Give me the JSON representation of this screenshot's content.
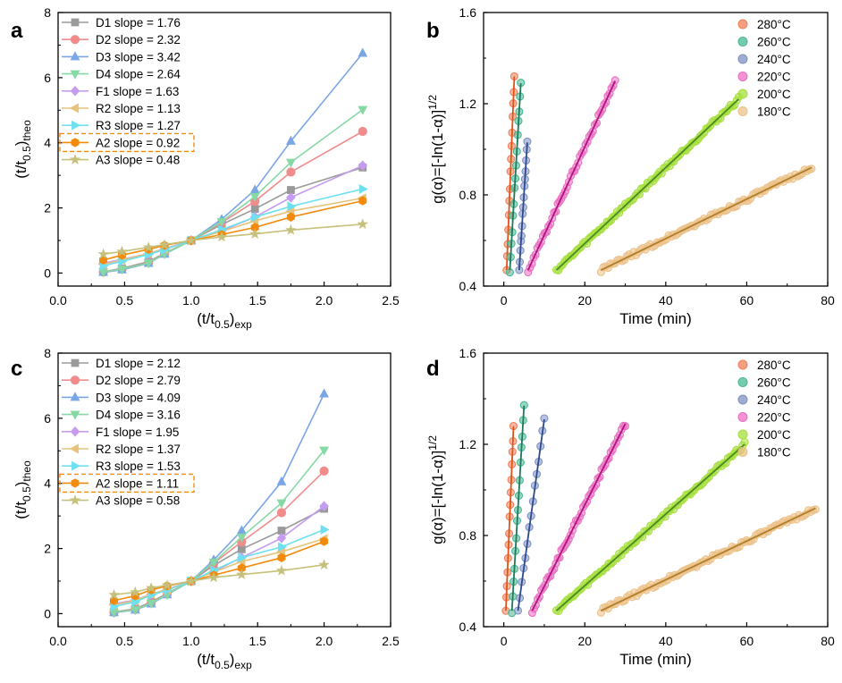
{
  "chart_data": [
    {
      "panel": "a",
      "type": "line",
      "xlabel": "(t/t0.5)exp",
      "ylabel": "(t/t0.5)theo",
      "xlim": [
        0.0,
        2.5
      ],
      "ylim": [
        -0.4,
        8
      ],
      "xticks": [
        "0.0",
        "0.5",
        "1.0",
        "1.5",
        "2.0",
        "2.5"
      ],
      "yticks": [
        "0",
        "2",
        "4",
        "6",
        "8"
      ],
      "legend_position": "top-left",
      "x": [
        0.34,
        0.48,
        0.68,
        0.8,
        1.0,
        1.23,
        1.48,
        1.75,
        2.29
      ],
      "series": [
        {
          "name": "D1 slope = 1.76",
          "marker": "square",
          "color": "#9a9a9a",
          "values": [
            0.04,
            0.14,
            0.35,
            0.61,
            1.0,
            1.49,
            1.97,
            2.55,
            3.24
          ]
        },
        {
          "name": "D2 slope = 2.32",
          "marker": "circle",
          "color": "#f08c8c",
          "values": [
            0.03,
            0.12,
            0.32,
            0.6,
            1.0,
            1.55,
            2.2,
            3.1,
            4.35
          ]
        },
        {
          "name": "D3 slope = 3.42",
          "marker": "triangle-up",
          "color": "#7aa6e6",
          "values": [
            0.02,
            0.1,
            0.3,
            0.58,
            1.0,
            1.65,
            2.55,
            4.05,
            6.75
          ]
        },
        {
          "name": "D4 slope = 2.64",
          "marker": "triangle-down",
          "color": "#86d8a4",
          "values": [
            0.03,
            0.12,
            0.31,
            0.59,
            1.0,
            1.58,
            2.35,
            3.4,
            5.02
          ]
        },
        {
          "name": "F1 slope = 1.63",
          "marker": "diamond",
          "color": "#c59cf0",
          "values": [
            0.3,
            0.42,
            0.6,
            0.75,
            1.0,
            1.3,
            1.72,
            2.32,
            3.3
          ]
        },
        {
          "name": "R2 slope = 1.13",
          "marker": "triangle-left",
          "color": "#e6c27a",
          "values": [
            0.27,
            0.4,
            0.6,
            0.74,
            1.0,
            1.28,
            1.6,
            1.9,
            2.3
          ]
        },
        {
          "name": "R3 slope = 1.27",
          "marker": "triangle-right",
          "color": "#6ee0f0",
          "values": [
            0.22,
            0.36,
            0.57,
            0.72,
            1.0,
            1.33,
            1.72,
            2.05,
            2.58
          ]
        },
        {
          "name": "A2 slope = 0.92",
          "marker": "hexagon",
          "color": "#f28a0c",
          "values": [
            0.4,
            0.55,
            0.73,
            0.85,
            1.0,
            1.18,
            1.4,
            1.72,
            2.22
          ]
        },
        {
          "name": "A3 slope = 0.48",
          "marker": "star",
          "color": "#c6c07a",
          "values": [
            0.58,
            0.66,
            0.79,
            0.87,
            1.0,
            1.11,
            1.2,
            1.32,
            1.5
          ]
        }
      ],
      "highlighted_legend_entry": "A2 slope = 0.92"
    },
    {
      "panel": "b",
      "type": "scatter",
      "xlabel": "Time (min)",
      "ylabel": "g(α)=[-ln(1-α)]1/2",
      "xlim": [
        -5,
        80
      ],
      "ylim": [
        0.4,
        1.6
      ],
      "xticks": [
        "0",
        "20",
        "40",
        "60",
        "80"
      ],
      "yticks": [
        "0.4",
        "0.8",
        "1.2",
        "1.6"
      ],
      "legend_position": "top-right",
      "series": [
        {
          "name": "280°C",
          "color": "#ef8058",
          "fit_color": "#e0531a",
          "x_range": [
            0.7,
            2.6
          ],
          "y_range": [
            0.47,
            1.32
          ]
        },
        {
          "name": "260°C",
          "color": "#48b894",
          "fit_color": "#1e7a5a",
          "x_range": [
            1.5,
            4.2
          ],
          "y_range": [
            0.47,
            1.29
          ]
        },
        {
          "name": "240°C",
          "color": "#7f92c4",
          "fit_color": "#2d4a8c",
          "x_range": [
            3.8,
            5.8
          ],
          "y_range": [
            0.47,
            1.03
          ]
        },
        {
          "name": "220°C",
          "color": "#ea6fc2",
          "fit_color": "#b0157e",
          "x_range": [
            6.0,
            27.5
          ],
          "y_range": [
            0.47,
            1.3
          ]
        },
        {
          "name": "200°C",
          "color": "#a6df3c",
          "fit_color": "#4a8a1e",
          "x_range": [
            13.0,
            58.0
          ],
          "y_range": [
            0.47,
            1.22
          ]
        },
        {
          "name": "180°C",
          "color": "#ecc188",
          "fit_color": "#b07d2a",
          "x_range": [
            24.0,
            76.0
          ],
          "y_range": [
            0.47,
            0.92
          ]
        }
      ]
    },
    {
      "panel": "c",
      "type": "line",
      "xlabel": "(t/t0.5)exp",
      "ylabel": "(t/t0.5)theo",
      "xlim": [
        0.0,
        2.5
      ],
      "ylim": [
        -0.4,
        8
      ],
      "xticks": [
        "0.0",
        "0.5",
        "1.0",
        "1.5",
        "2.0",
        "2.5"
      ],
      "yticks": [
        "0",
        "2",
        "4",
        "6",
        "8"
      ],
      "legend_position": "top-left",
      "x": [
        0.42,
        0.58,
        0.7,
        0.82,
        1.0,
        1.17,
        1.38,
        1.68,
        2.0
      ],
      "series": [
        {
          "name": "D1 slope = 2.12",
          "marker": "square",
          "color": "#9a9a9a",
          "values": [
            0.05,
            0.15,
            0.36,
            0.62,
            1.0,
            1.48,
            1.98,
            2.55,
            3.22
          ]
        },
        {
          "name": "D2 slope = 2.79",
          "marker": "circle",
          "color": "#f08c8c",
          "values": [
            0.04,
            0.13,
            0.33,
            0.6,
            1.0,
            1.55,
            2.2,
            3.1,
            4.38
          ]
        },
        {
          "name": "D3 slope = 4.09",
          "marker": "triangle-up",
          "color": "#7aa6e6",
          "values": [
            0.03,
            0.11,
            0.3,
            0.58,
            1.0,
            1.65,
            2.55,
            4.05,
            6.75
          ]
        },
        {
          "name": "D4 slope = 3.16",
          "marker": "triangle-down",
          "color": "#86d8a4",
          "values": [
            0.04,
            0.12,
            0.32,
            0.59,
            1.0,
            1.58,
            2.35,
            3.4,
            5.02
          ]
        },
        {
          "name": "F1 slope = 1.95",
          "marker": "diamond",
          "color": "#c59cf0",
          "values": [
            0.3,
            0.42,
            0.6,
            0.75,
            1.0,
            1.3,
            1.72,
            2.32,
            3.3
          ]
        },
        {
          "name": "R2 slope = 1.37",
          "marker": "triangle-left",
          "color": "#e6c27a",
          "values": [
            0.27,
            0.4,
            0.6,
            0.74,
            1.0,
            1.28,
            1.6,
            1.9,
            2.3
          ]
        },
        {
          "name": "R3 slope = 1.53",
          "marker": "triangle-right",
          "color": "#6ee0f0",
          "values": [
            0.22,
            0.36,
            0.57,
            0.72,
            1.0,
            1.33,
            1.72,
            2.05,
            2.58
          ]
        },
        {
          "name": "A2 slope = 1.11",
          "marker": "hexagon",
          "color": "#f28a0c",
          "values": [
            0.4,
            0.55,
            0.73,
            0.85,
            1.0,
            1.18,
            1.4,
            1.72,
            2.22
          ]
        },
        {
          "name": "A3 slope = 0.58",
          "marker": "star",
          "color": "#c6c07a",
          "values": [
            0.58,
            0.66,
            0.79,
            0.87,
            1.0,
            1.11,
            1.2,
            1.32,
            1.5
          ]
        }
      ],
      "highlighted_legend_entry": "A2 slope = 1.11"
    },
    {
      "panel": "d",
      "type": "scatter",
      "xlabel": "Time (min)",
      "ylabel": "g(α)=[-ln(1-α)]1/2",
      "xlim": [
        -5,
        80
      ],
      "ylim": [
        0.4,
        1.6
      ],
      "xticks": [
        "0",
        "20",
        "40",
        "60",
        "80"
      ],
      "yticks": [
        "0.4",
        "0.8",
        "1.2",
        "1.6"
      ],
      "legend_position": "top-right",
      "series": [
        {
          "name": "280°C",
          "color": "#ef8058",
          "fit_color": "#e0531a",
          "x_range": [
            0.5,
            2.4
          ],
          "y_range": [
            0.47,
            1.28
          ]
        },
        {
          "name": "260°C",
          "color": "#48b894",
          "fit_color": "#1e7a5a",
          "x_range": [
            2.0,
            5.0
          ],
          "y_range": [
            0.47,
            1.37
          ]
        },
        {
          "name": "240°C",
          "color": "#7f92c4",
          "fit_color": "#2d4a8c",
          "x_range": [
            3.5,
            10.0
          ],
          "y_range": [
            0.47,
            1.31
          ]
        },
        {
          "name": "220°C",
          "color": "#ea6fc2",
          "fit_color": "#b0157e",
          "x_range": [
            7.0,
            30.0
          ],
          "y_range": [
            0.47,
            1.29
          ]
        },
        {
          "name": "200°C",
          "color": "#a6df3c",
          "fit_color": "#4a8a1e",
          "x_range": [
            13.0,
            59.5
          ],
          "y_range": [
            0.47,
            1.2
          ]
        },
        {
          "name": "180°C",
          "color": "#ecc188",
          "fit_color": "#b07d2a",
          "x_range": [
            24.0,
            77.0
          ],
          "y_range": [
            0.47,
            0.92
          ]
        }
      ]
    }
  ]
}
